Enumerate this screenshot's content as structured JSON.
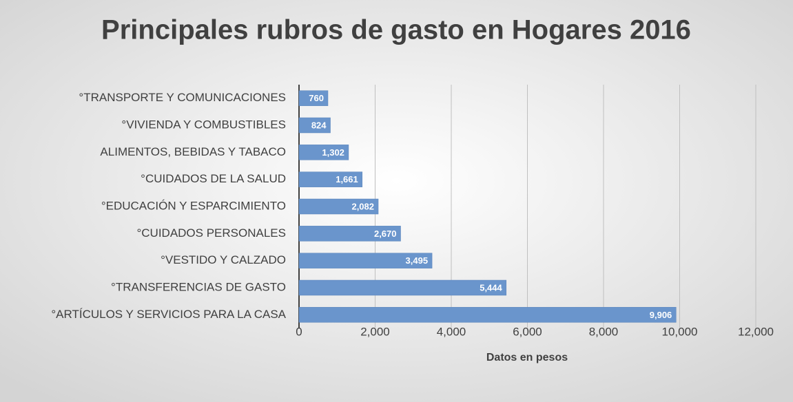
{
  "chart_data": {
    "type": "bar",
    "orientation": "horizontal",
    "title": "Principales rubros de gasto en Hogares 2016",
    "x_label": "Datos en pesos",
    "categories": [
      "°TRANSPORTE Y COMUNICACIONES",
      "°VIVIENDA Y COMBUSTIBLES",
      "ALIMENTOS, BEBIDAS Y TABACO",
      "°CUIDADOS DE LA SALUD",
      "°EDUCACIÓN Y ESPARCIMIENTO",
      "°CUIDADOS PERSONALES",
      "°VESTIDO Y CALZADO",
      "°TRANSFERENCIAS DE GASTO",
      "°ARTÍCULOS Y SERVICIOS PARA LA CASA"
    ],
    "values": [
      760,
      824,
      1302,
      1661,
      2082,
      2670,
      3495,
      5444,
      9906
    ],
    "value_labels": [
      "760",
      "824",
      "1,302",
      "1,661",
      "2,082",
      "2,670",
      "3,495",
      "5,444",
      "9,906"
    ],
    "color": "#6a95cc",
    "xlim": [
      0,
      12000
    ],
    "xticks": [
      0,
      {
        "value": 2000,
        "label": "2,000"
      },
      {
        "value": 4000,
        "label": "4,000"
      },
      {
        "value": 6000,
        "label": "6,000"
      },
      {
        "value": 8000,
        "label": "8,000"
      },
      {
        "value": 10000,
        "label": "10,000"
      },
      {
        "value": 12000,
        "label": "12,000"
      }
    ],
    "grid": true
  }
}
